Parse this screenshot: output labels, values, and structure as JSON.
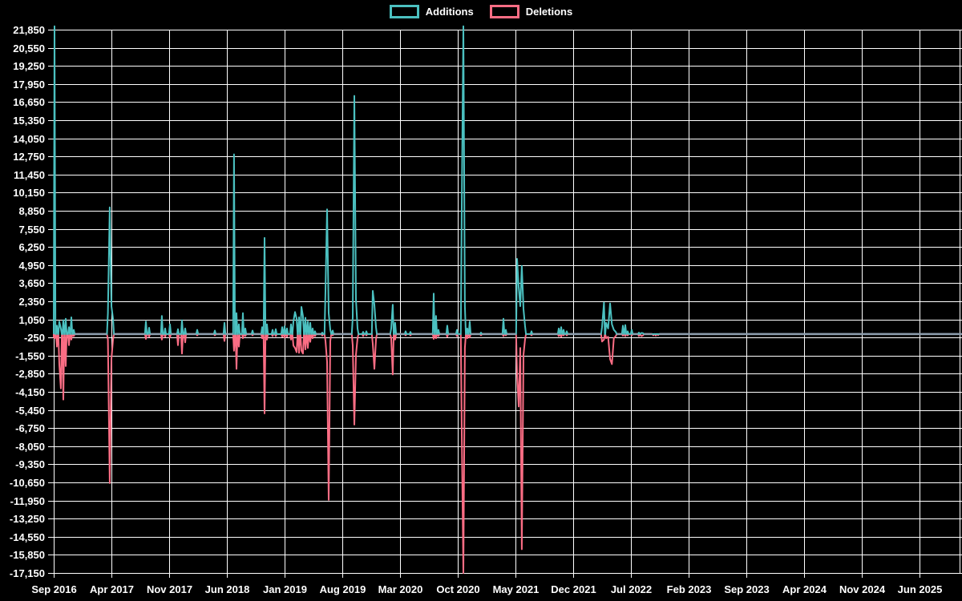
{
  "chart_data": {
    "type": "line",
    "title": "",
    "xlabel": "",
    "ylabel": "",
    "grid": true,
    "legend_position": "top-center",
    "background_color": "#000000",
    "grid_color": "#ffffff",
    "text_color": "#ffffff",
    "zero_overlap_color": "#8c9cac",
    "y_axis": {
      "min": -17150,
      "max": 21850,
      "tick_step": 1300,
      "tick_labels": [
        "21,850",
        "20,550",
        "19,250",
        "17,950",
        "16,650",
        "15,350",
        "14,050",
        "12,750",
        "11,450",
        "10,150",
        "8,850",
        "7,550",
        "6,250",
        "4,950",
        "3,650",
        "2,350",
        "1,050",
        "-250",
        "-1,550",
        "-2,850",
        "-4,150",
        "-5,450",
        "-6,750",
        "-8,050",
        "-9,350",
        "-10,650",
        "-11,950",
        "-13,250",
        "-14,550",
        "-15,850",
        "-17,150"
      ]
    },
    "x_axis": {
      "labels": [
        "Sep 2016",
        "Apr 2017",
        "Nov 2017",
        "Jun 2018",
        "Jan 2019",
        "Aug 2019",
        "Mar 2020",
        "Oct 2020",
        "May 2021",
        "Dec 2021",
        "Jul 2022",
        "Feb 2023",
        "Sep 2023",
        "Apr 2024",
        "Nov 2024",
        "Jun 2025"
      ],
      "label_month_offsets": [
        0,
        7,
        14,
        21,
        28,
        35,
        42,
        49,
        56,
        63,
        70,
        77,
        84,
        91,
        98,
        105
      ],
      "min_month": 0,
      "max_month": 110.2
    },
    "series": [
      {
        "name": "Additions",
        "color": "#4bc0c0"
      },
      {
        "name": "Deletions",
        "color": "#fb6d84"
      }
    ],
    "points_format": [
      "month_offset_from_sep_2016",
      "additions",
      "deletions"
    ],
    "points": [
      [
        0.0,
        400,
        -200
      ],
      [
        0.1,
        22100,
        -300
      ],
      [
        0.39,
        600,
        -900
      ],
      [
        0.68,
        900,
        -2200
      ],
      [
        0.87,
        400,
        -3900
      ],
      [
        1.17,
        1000,
        -4700
      ],
      [
        1.46,
        1100,
        -2300
      ],
      [
        1.85,
        500,
        -800
      ],
      [
        2.14,
        1200,
        -400
      ],
      [
        2.43,
        300,
        -150
      ],
      [
        6.57,
        1500,
        -400
      ],
      [
        6.8,
        9100,
        -10700
      ],
      [
        7.0,
        2000,
        -1800
      ],
      [
        7.19,
        1100,
        -400
      ],
      [
        11.18,
        900,
        -350
      ],
      [
        11.57,
        450,
        -200
      ],
      [
        13.12,
        1300,
        -400
      ],
      [
        13.51,
        400,
        -200
      ],
      [
        14.1,
        700,
        -250
      ],
      [
        15.07,
        350,
        -800
      ],
      [
        15.56,
        1000,
        -1400
      ],
      [
        15.94,
        400,
        -600
      ],
      [
        17.4,
        300,
        -100
      ],
      [
        19.54,
        250,
        -100
      ],
      [
        20.71,
        800,
        -500
      ],
      [
        21.87,
        12900,
        -1200
      ],
      [
        22.17,
        1500,
        -2500
      ],
      [
        22.46,
        700,
        -900
      ],
      [
        22.94,
        1500,
        -300
      ],
      [
        23.24,
        400,
        -150
      ],
      [
        24.11,
        250,
        -100
      ],
      [
        25.28,
        500,
        -300
      ],
      [
        25.57,
        6900,
        -5700
      ],
      [
        25.86,
        700,
        -400
      ],
      [
        26.54,
        300,
        -150
      ],
      [
        26.93,
        350,
        -150
      ],
      [
        27.71,
        500,
        -200
      ],
      [
        28.0,
        550,
        -250
      ],
      [
        28.29,
        400,
        -200
      ],
      [
        28.78,
        700,
        -400
      ],
      [
        29.07,
        900,
        -830
      ],
      [
        29.26,
        1580,
        -1000
      ],
      [
        29.46,
        1100,
        -1300
      ],
      [
        29.75,
        1200,
        -1350
      ],
      [
        30.04,
        1950,
        -1200
      ],
      [
        30.23,
        1300,
        -1400
      ],
      [
        30.53,
        1170,
        -1100
      ],
      [
        30.82,
        900,
        -1000
      ],
      [
        31.11,
        800,
        -560
      ],
      [
        31.4,
        400,
        -300
      ],
      [
        31.69,
        200,
        -150
      ],
      [
        32.57,
        100,
        -120
      ],
      [
        32.96,
        3100,
        -500
      ],
      [
        33.15,
        8950,
        -2000
      ],
      [
        33.35,
        1500,
        -11900
      ],
      [
        33.54,
        300,
        -500
      ],
      [
        33.83,
        250,
        -100
      ],
      [
        36.26,
        1200,
        -800
      ],
      [
        36.46,
        17100,
        -6500
      ],
      [
        36.65,
        2500,
        -1500
      ],
      [
        36.85,
        400,
        -300
      ],
      [
        37.53,
        150,
        -150
      ],
      [
        37.92,
        200,
        -100
      ],
      [
        38.69,
        3100,
        -700
      ],
      [
        38.89,
        2100,
        -2500
      ],
      [
        39.08,
        500,
        -400
      ],
      [
        40.93,
        400,
        -300
      ],
      [
        41.12,
        2100,
        -2900
      ],
      [
        41.41,
        800,
        -400
      ],
      [
        42.68,
        200,
        -100
      ],
      [
        43.26,
        150,
        -100
      ],
      [
        46.08,
        2900,
        -350
      ],
      [
        46.37,
        1300,
        -300
      ],
      [
        46.66,
        300,
        -150
      ],
      [
        47.73,
        600,
        -200
      ],
      [
        48.9,
        300,
        -150
      ],
      [
        49.48,
        8450,
        -6500
      ],
      [
        49.68,
        22100,
        -17150
      ],
      [
        49.87,
        2000,
        -1000
      ],
      [
        50.16,
        400,
        -300
      ],
      [
        50.45,
        900,
        -250
      ],
      [
        51.82,
        100,
        -100
      ],
      [
        54.54,
        1100,
        -150
      ],
      [
        54.83,
        300,
        -100
      ],
      [
        56.19,
        5400,
        -2900
      ],
      [
        56.39,
        3400,
        -5200
      ],
      [
        56.58,
        2000,
        -1000
      ],
      [
        56.77,
        4900,
        -15450
      ],
      [
        56.97,
        1800,
        -1500
      ],
      [
        57.16,
        600,
        -400
      ],
      [
        57.94,
        200,
        -100
      ],
      [
        61.25,
        400,
        -150
      ],
      [
        61.54,
        500,
        -200
      ],
      [
        61.83,
        300,
        -100
      ],
      [
        62.22,
        200,
        -100
      ],
      [
        66.5,
        500,
        -540
      ],
      [
        66.73,
        2250,
        -400
      ],
      [
        67.0,
        800,
        -300
      ],
      [
        67.24,
        400,
        -200
      ],
      [
        67.47,
        2200,
        -1800
      ],
      [
        67.7,
        700,
        -2160
      ],
      [
        67.93,
        300,
        -300
      ],
      [
        68.16,
        150,
        -150
      ],
      [
        69.03,
        600,
        -120
      ],
      [
        69.32,
        650,
        -150
      ],
      [
        69.61,
        200,
        -100
      ],
      [
        70.1,
        300,
        -100
      ],
      [
        70.97,
        100,
        -150
      ],
      [
        71.26,
        80,
        -150
      ],
      [
        71.46,
        60,
        -100
      ],
      [
        72.72,
        0,
        -100
      ],
      [
        73.01,
        0,
        -120
      ],
      [
        73.3,
        0,
        -80
      ]
    ]
  }
}
